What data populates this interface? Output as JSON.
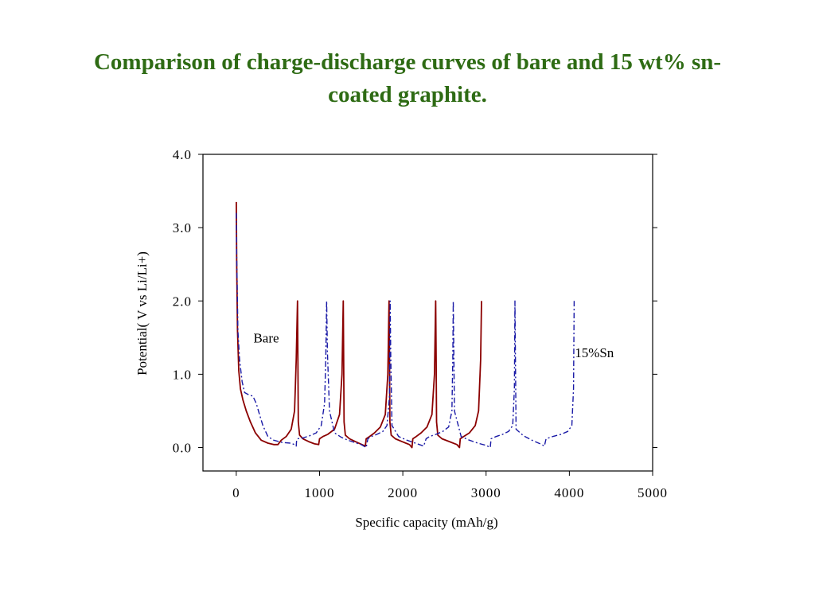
{
  "slide": {
    "title": "Comparison of charge-discharge curves of bare and 15 wt% sn-coated graphite."
  },
  "colors": {
    "title": "#2e6b14",
    "bare": "#8b0000",
    "sn15": "#1a1aa6"
  },
  "chart_data": {
    "type": "line",
    "xlabel": "Specific capacity (mAh/g)",
    "ylabel": "Potential( V vs Li/Li+)",
    "xlim": [
      -400,
      5000
    ],
    "ylim": [
      -0.32,
      4.0
    ],
    "xticks": [
      0,
      1000,
      2000,
      3000,
      4000,
      5000
    ],
    "xtick_labels": [
      "0",
      "1000",
      "2000",
      "3000",
      "4000",
      "5000"
    ],
    "yticks": [
      0.0,
      1.0,
      2.0,
      3.0,
      4.0
    ],
    "ytick_labels": [
      "0.0",
      "1.0",
      "2.0",
      "3.0",
      "4.0"
    ],
    "grid": false,
    "annotations": [
      {
        "text": "Bare",
        "series": "Bare",
        "x": 360,
        "y": 1.5
      },
      {
        "text": "15%Sn",
        "series": "15%Sn",
        "x": 4300,
        "y": 1.3
      }
    ],
    "series": [
      {
        "name": "Bare",
        "style": "solid",
        "color": "#8b0000",
        "x": [
          0,
          5,
          15,
          30,
          50,
          80,
          120,
          170,
          230,
          300,
          380,
          450,
          500,
          540,
          600,
          660,
          700,
          720,
          735,
          740,
          745,
          760,
          800,
          870,
          940,
          990,
          1000,
          1040,
          1100,
          1180,
          1240,
          1270,
          1285,
          1290,
          1295,
          1310,
          1360,
          1430,
          1510,
          1550,
          1560,
          1600,
          1660,
          1730,
          1790,
          1820,
          1835,
          1840,
          1845,
          1860,
          1910,
          1990,
          2080,
          2110,
          2120,
          2160,
          2220,
          2290,
          2350,
          2380,
          2395,
          2400,
          2405,
          2420,
          2470,
          2560,
          2650,
          2680,
          2690,
          2730,
          2800,
          2870,
          2910,
          2935,
          2945
        ],
        "y": [
          3.35,
          2.5,
          1.6,
          1.05,
          0.8,
          0.65,
          0.5,
          0.35,
          0.2,
          0.1,
          0.06,
          0.04,
          0.04,
          0.1,
          0.15,
          0.25,
          0.5,
          1.2,
          2.0,
          1.2,
          0.35,
          0.17,
          0.12,
          0.08,
          0.05,
          0.04,
          0.12,
          0.15,
          0.18,
          0.25,
          0.45,
          1.0,
          2.0,
          1.2,
          0.35,
          0.17,
          0.12,
          0.08,
          0.04,
          0.02,
          0.12,
          0.15,
          0.2,
          0.28,
          0.45,
          1.0,
          2.0,
          1.2,
          0.35,
          0.17,
          0.12,
          0.08,
          0.04,
          0.0,
          0.12,
          0.15,
          0.2,
          0.28,
          0.45,
          1.0,
          2.0,
          1.2,
          0.35,
          0.17,
          0.12,
          0.08,
          0.04,
          0.0,
          0.12,
          0.15,
          0.2,
          0.3,
          0.5,
          1.2,
          2.0
        ]
      },
      {
        "name": "15%Sn",
        "style": "dashdot",
        "color": "#1a1aa6",
        "x": [
          0,
          5,
          10,
          20,
          40,
          70,
          100,
          150,
          200,
          240,
          280,
          320,
          380,
          450,
          550,
          650,
          700,
          720,
          725,
          735,
          800,
          880,
          960,
          1020,
          1060,
          1075,
          1085,
          1095,
          1120,
          1180,
          1260,
          1340,
          1420,
          1500,
          1560,
          1580,
          1620,
          1690,
          1760,
          1810,
          1840,
          1848,
          1855,
          1870,
          1950,
          2050,
          2150,
          2250,
          2280,
          2320,
          2400,
          2480,
          2550,
          2590,
          2600,
          2606,
          2620,
          2700,
          2800,
          2900,
          3000,
          3050,
          3060,
          3120,
          3200,
          3270,
          3320,
          3340,
          3347,
          3360,
          3450,
          3550,
          3650,
          3700,
          3720,
          3800,
          3900,
          3980,
          4030,
          4050,
          4058
        ],
        "y": [
          3.2,
          2.6,
          2.3,
          1.6,
          1.2,
          0.9,
          0.75,
          0.72,
          0.7,
          0.6,
          0.45,
          0.3,
          0.15,
          0.1,
          0.07,
          0.06,
          0.04,
          0.02,
          0.1,
          0.12,
          0.13,
          0.16,
          0.2,
          0.3,
          0.6,
          1.2,
          2.0,
          1.3,
          0.5,
          0.2,
          0.14,
          0.1,
          0.07,
          0.04,
          0.0,
          0.12,
          0.15,
          0.18,
          0.22,
          0.3,
          0.7,
          2.0,
          1.3,
          0.3,
          0.15,
          0.1,
          0.06,
          0.02,
          0.12,
          0.15,
          0.18,
          0.22,
          0.28,
          0.5,
          1.2,
          2.0,
          0.5,
          0.15,
          0.1,
          0.06,
          0.03,
          0.0,
          0.12,
          0.15,
          0.18,
          0.22,
          0.3,
          0.8,
          2.0,
          0.25,
          0.16,
          0.1,
          0.05,
          0.02,
          0.12,
          0.15,
          0.18,
          0.22,
          0.3,
          0.8,
          2.0
        ]
      }
    ]
  }
}
